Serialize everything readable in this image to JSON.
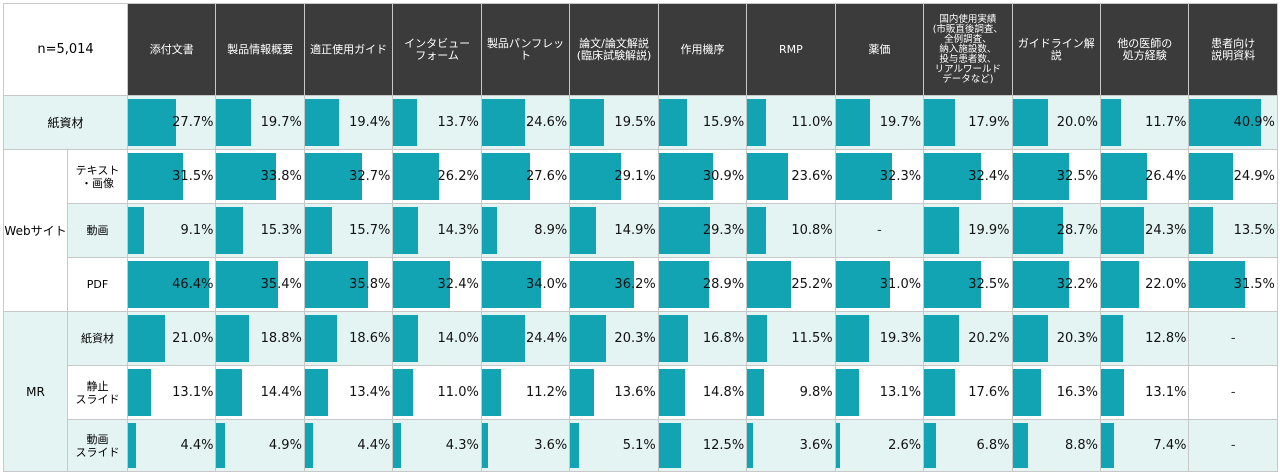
{
  "corner_label": "n=5,014",
  "columns": [
    {
      "lines": [
        "添付文書"
      ]
    },
    {
      "lines": [
        "製品情報概要"
      ]
    },
    {
      "lines": [
        "適正使用ガイド"
      ]
    },
    {
      "lines": [
        "インタビュー",
        "フォーム"
      ]
    },
    {
      "lines": [
        "製品パンフレット"
      ]
    },
    {
      "lines": [
        "論文/論文解説",
        "(臨床試験解説)"
      ]
    },
    {
      "lines": [
        "作用機序"
      ]
    },
    {
      "lines": [
        "RMP"
      ]
    },
    {
      "lines": [
        "薬価"
      ]
    },
    {
      "lines": [
        "国内使用実績",
        "(市販直後調査、",
        "全例調査、",
        "納入施設数、",
        "投与患者数、",
        "リアルワールド",
        "データなど)"
      ],
      "small": true
    },
    {
      "lines": [
        "ガイドライン解説"
      ]
    },
    {
      "lines": [
        "他の医師の",
        "処方経験"
      ]
    },
    {
      "lines": [
        "患者向け",
        "説明資料"
      ]
    }
  ],
  "groups": [
    {
      "label": "紙資材",
      "rowspan": 1,
      "span_sub": true
    },
    {
      "label": "Webサイト",
      "rowspan": 3
    },
    {
      "label": "MR",
      "rowspan": 3
    }
  ],
  "rows": [
    {
      "group": 0,
      "sub": [
        "紙資材"
      ],
      "teal": true,
      "labels": [
        "27.7%",
        "19.7%",
        "19.4%",
        "13.7%",
        "24.6%",
        "19.5%",
        "15.9%",
        "11.0%",
        "19.7%",
        "17.9%",
        "20.0%",
        "11.7%",
        "40.9%"
      ]
    },
    {
      "group": 1,
      "sub": [
        "テキスト",
        "・画像"
      ],
      "teal": false,
      "labels": [
        "31.5%",
        "33.8%",
        "32.7%",
        "26.2%",
        "27.6%",
        "29.1%",
        "30.9%",
        "23.6%",
        "32.3%",
        "32.4%",
        "32.5%",
        "26.4%",
        "24.9%"
      ]
    },
    {
      "group": 1,
      "sub": [
        "動画"
      ],
      "teal": true,
      "labels": [
        "9.1%",
        "15.3%",
        "15.7%",
        "14.3%",
        "8.9%",
        "14.9%",
        "29.3%",
        "10.8%",
        "-",
        "19.9%",
        "28.7%",
        "24.3%",
        "13.5%"
      ]
    },
    {
      "group": 1,
      "sub": [
        "PDF"
      ],
      "teal": false,
      "labels": [
        "46.4%",
        "35.4%",
        "35.8%",
        "32.4%",
        "34.0%",
        "36.2%",
        "28.9%",
        "25.2%",
        "31.0%",
        "32.5%",
        "32.2%",
        "22.0%",
        "31.5%"
      ]
    },
    {
      "group": 2,
      "sub": [
        "紙資材"
      ],
      "teal": true,
      "labels": [
        "21.0%",
        "18.8%",
        "18.6%",
        "14.0%",
        "24.4%",
        "20.3%",
        "16.8%",
        "11.5%",
        "19.3%",
        "20.2%",
        "20.3%",
        "12.8%",
        "-"
      ]
    },
    {
      "group": 2,
      "sub": [
        "静止",
        "スライド"
      ],
      "teal": false,
      "labels": [
        "13.1%",
        "14.4%",
        "13.4%",
        "11.0%",
        "11.2%",
        "13.6%",
        "14.8%",
        "9.8%",
        "13.1%",
        "17.6%",
        "16.3%",
        "13.1%",
        "-"
      ]
    },
    {
      "group": 2,
      "sub": [
        "動画",
        "スライド"
      ],
      "teal": true,
      "labels": [
        "4.4%",
        "4.9%",
        "4.4%",
        "4.3%",
        "3.6%",
        "5.1%",
        "12.5%",
        "3.6%",
        "2.6%",
        "6.8%",
        "8.8%",
        "7.4%",
        "-"
      ]
    }
  ],
  "chart_data": {
    "type": "table",
    "categories": [
      "添付文書",
      "製品情報概要",
      "適正使用ガイド",
      "インタビューフォーム",
      "製品パンフレット",
      "論文/論文解説(臨床試験解説)",
      "作用機序",
      "RMP",
      "薬価",
      "国内使用実績(市販直後調査、全例調査、納入施設数、投与患者数、リアルワールドデータなど)",
      "ガイドライン解説",
      "他の医師の処方経験",
      "患者向け説明資料"
    ],
    "series": [
      {
        "name": "紙資材",
        "values": [
          27.7,
          19.7,
          19.4,
          13.7,
          24.6,
          19.5,
          15.9,
          11.0,
          19.7,
          17.9,
          20.0,
          11.7,
          40.9
        ]
      },
      {
        "name": "Webサイト テキスト・画像",
        "values": [
          31.5,
          33.8,
          32.7,
          26.2,
          27.6,
          29.1,
          30.9,
          23.6,
          32.3,
          32.4,
          32.5,
          26.4,
          24.9
        ]
      },
      {
        "name": "Webサイト 動画",
        "values": [
          9.1,
          15.3,
          15.7,
          14.3,
          8.9,
          14.9,
          29.3,
          10.8,
          null,
          19.9,
          28.7,
          24.3,
          13.5
        ]
      },
      {
        "name": "Webサイト PDF",
        "values": [
          46.4,
          35.4,
          35.8,
          32.4,
          34.0,
          36.2,
          28.9,
          25.2,
          31.0,
          32.5,
          32.2,
          22.0,
          31.5
        ]
      },
      {
        "name": "MR 紙資材",
        "values": [
          21.0,
          18.8,
          18.6,
          14.0,
          24.4,
          20.3,
          16.8,
          11.5,
          19.3,
          20.2,
          20.3,
          12.8,
          null
        ]
      },
      {
        "name": "MR 静止スライド",
        "values": [
          13.1,
          14.4,
          13.4,
          11.0,
          11.2,
          13.6,
          14.8,
          9.8,
          13.1,
          17.6,
          16.3,
          13.1,
          null
        ]
      },
      {
        "name": "MR 動画スライド",
        "values": [
          4.4,
          4.9,
          4.4,
          4.3,
          3.6,
          5.1,
          12.5,
          3.6,
          2.6,
          6.8,
          8.8,
          7.4,
          null
        ]
      }
    ],
    "unit": "%",
    "bar_max": 50
  },
  "colors": {
    "bar": "#12a4b3",
    "header": "#3b3b3b",
    "teal_row": "#e3f4f3"
  }
}
